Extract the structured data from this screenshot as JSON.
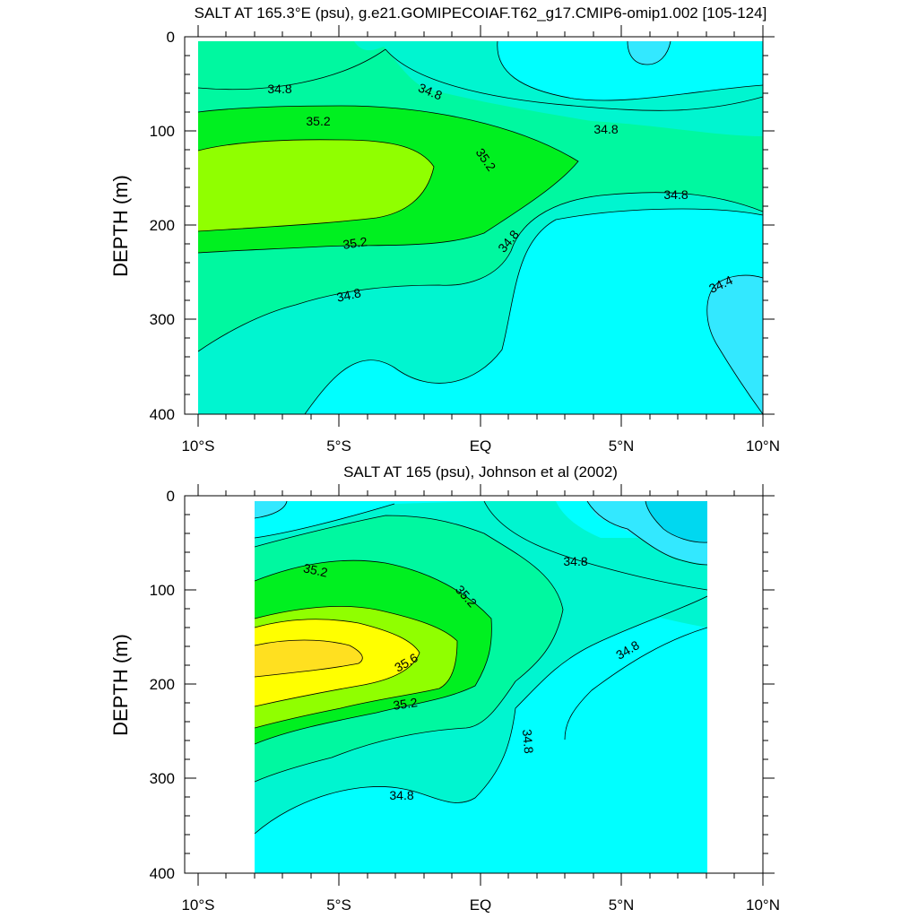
{
  "panels": [
    {
      "title": "SALT AT 165.3°E (psu), g.e21.GOMIPECOIAF.T62_g17.CMIP6-omip1.002 [105-124]",
      "ylabel": "DEPTH (m)",
      "yticks": [
        "0",
        "100",
        "200",
        "300",
        "400"
      ],
      "xticks": [
        "10°S",
        "5°S",
        "EQ",
        "5°N",
        "10°N"
      ],
      "contour_labels": [
        "34.8",
        "34.8",
        "34.8",
        "34.8",
        "35.2",
        "35.2",
        "35.2",
        "34.8",
        "34.8",
        "34.4"
      ]
    },
    {
      "title": "SALT AT 165 (psu), Johnson et al (2002)",
      "ylabel": "DEPTH (m)",
      "yticks": [
        "0",
        "100",
        "200",
        "300",
        "400"
      ],
      "xticks": [
        "10°S",
        "5°S",
        "EQ",
        "5°N",
        "10°N"
      ],
      "contour_labels": [
        "35.2",
        "35.2",
        "34.8",
        "34.8",
        "35.6",
        "35.2",
        "34.8",
        "34.8"
      ]
    }
  ],
  "colors": {
    "c34_4": "#00ffff",
    "c34_4b": "#33e8ff",
    "c34_4c": "#00d8f0",
    "c34_8": "#00f5d0",
    "c35_0": "#00f8a0",
    "c35_2": "#00f020",
    "c35_4": "#90ff00",
    "c35_6": "#ffff00",
    "c35_8": "#ffe020"
  },
  "chart_data": [
    {
      "type": "heatmap",
      "subtype": "filled contour",
      "title": "SALT AT 165.3°E (psu), g.e21.GOMIPECOIAF.T62_g17.CMIP6-omip1.002 [105-124]",
      "xlabel": "",
      "ylabel": "DEPTH (m)",
      "xlim": [
        -10,
        10
      ],
      "ylim": [
        400,
        0
      ],
      "contour_levels": [
        34.4,
        34.6,
        34.8,
        35.0,
        35.2,
        35.4
      ],
      "labeled_contours": [
        34.4,
        34.8,
        35.2
      ]
    },
    {
      "type": "heatmap",
      "subtype": "filled contour",
      "title": "SALT AT 165 (psu), Johnson et al (2002)",
      "xlabel": "",
      "ylabel": "DEPTH (m)",
      "xlim": [
        -10,
        10
      ],
      "ylim": [
        400,
        0
      ],
      "data_extent_x": [
        -8,
        8
      ],
      "contour_levels": [
        34.4,
        34.6,
        34.8,
        35.0,
        35.2,
        35.4,
        35.6,
        35.8
      ],
      "labeled_contours": [
        34.8,
        35.2,
        35.6
      ]
    }
  ]
}
